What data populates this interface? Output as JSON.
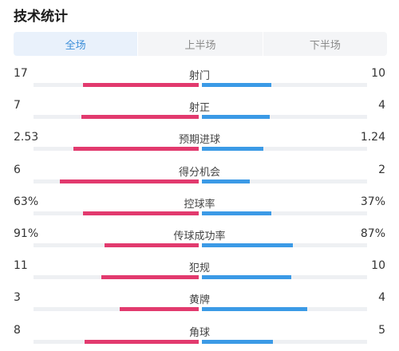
{
  "title": "技术统计",
  "tabs": [
    {
      "label": "全场",
      "active": true
    },
    {
      "label": "上半场",
      "active": false
    },
    {
      "label": "下半场",
      "active": false
    }
  ],
  "colors": {
    "home": "#e23a6e",
    "away": "#3b9ae6",
    "tab_active": "#3d8fd9"
  },
  "stats": [
    {
      "label": "射门",
      "home": "17",
      "away": "10",
      "home_share": 0.7,
      "away_share": 0.42
    },
    {
      "label": "射正",
      "home": "7",
      "away": "4",
      "home_share": 0.71,
      "away_share": 0.41
    },
    {
      "label": "预期进球",
      "home": "2.53",
      "away": "1.24",
      "home_share": 0.76,
      "away_share": 0.37
    },
    {
      "label": "得分机会",
      "home": "6",
      "away": "2",
      "home_share": 0.84,
      "away_share": 0.29
    },
    {
      "label": "控球率",
      "home": "63%",
      "away": "37%",
      "home_share": 0.7,
      "away_share": 0.42
    },
    {
      "label": "传球成功率",
      "home": "91%",
      "away": "87%",
      "home_share": 0.57,
      "away_share": 0.55
    },
    {
      "label": "犯规",
      "home": "11",
      "away": "10",
      "home_share": 0.59,
      "away_share": 0.54
    },
    {
      "label": "黄牌",
      "home": "3",
      "away": "4",
      "home_share": 0.48,
      "away_share": 0.64
    },
    {
      "label": "角球",
      "home": "8",
      "away": "5",
      "home_share": 0.69,
      "away_share": 0.43
    }
  ]
}
